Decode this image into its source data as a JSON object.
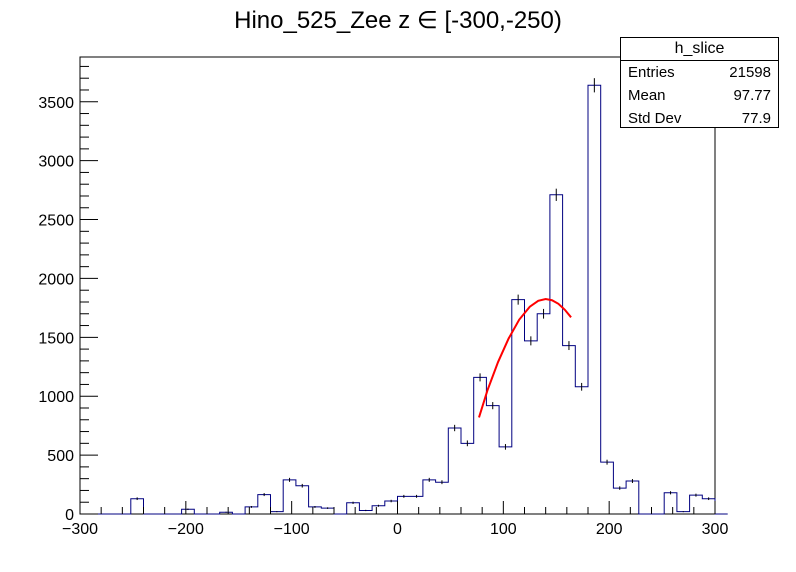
{
  "chart_data": {
    "type": "bar",
    "title": "Hino_525_Zee z  ∈ [-300,-250)",
    "xlabel": "",
    "ylabel": "",
    "xlim": [
      -300,
      300
    ],
    "ylim": [
      0,
      3880
    ],
    "bin_width": 12,
    "bin_start": -300,
    "values": [
      0,
      0,
      0,
      0,
      130,
      0,
      0,
      0,
      40,
      0,
      0,
      15,
      0,
      60,
      165,
      20,
      290,
      240,
      60,
      50,
      0,
      95,
      30,
      70,
      110,
      150,
      150,
      290,
      270,
      730,
      600,
      1160,
      920,
      570,
      1820,
      1470,
      1700,
      2710,
      1430,
      1080,
      3640,
      440,
      220,
      280,
      0,
      0,
      180,
      20,
      160,
      130,
      0
    ],
    "x_ticks": [
      -300,
      -200,
      -100,
      0,
      100,
      200,
      300
    ],
    "y_ticks": [
      0,
      500,
      1000,
      1500,
      2000,
      2500,
      3000,
      3500
    ],
    "fit": {
      "x": [
        77,
        85,
        95,
        105,
        115,
        125,
        133,
        140,
        146,
        152,
        158,
        164
      ],
      "y": [
        820,
        1050,
        1290,
        1490,
        1650,
        1760,
        1810,
        1825,
        1815,
        1785,
        1735,
        1670
      ]
    },
    "colors": {
      "hist": "#000080",
      "fit": "#ff0000",
      "axis": "#000000"
    }
  },
  "stats_box": {
    "name": "h_slice",
    "rows": [
      {
        "label": "Entries",
        "value": "21598"
      },
      {
        "label": "Mean",
        "value": "97.77"
      },
      {
        "label": "Std Dev",
        "value": "77.9"
      }
    ]
  }
}
